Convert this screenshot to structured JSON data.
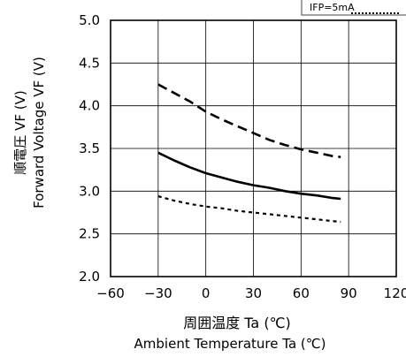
{
  "chart_data": {
    "type": "line",
    "xlabel_jp": "周囲温度 Ta (℃)",
    "xlabel_en": "Ambient Temperature Ta (℃)",
    "ylabel_jp": "順電圧 VF (V)",
    "ylabel_en": "Forward Voltage VF (V)",
    "xlim": [
      -60,
      120
    ],
    "ylim": [
      2.0,
      5.0
    ],
    "x_ticks": [
      "−60",
      "−30",
      "0",
      "30",
      "60",
      "90",
      "120"
    ],
    "x_tick_values": [
      -60,
      -30,
      0,
      30,
      60,
      90,
      120
    ],
    "y_ticks": [
      "5.0",
      "4.5",
      "4.0",
      "3.5",
      "3.0",
      "2.5",
      "2.0"
    ],
    "y_tick_values": [
      5.0,
      4.5,
      4.0,
      3.5,
      3.0,
      2.5,
      2.0
    ],
    "grid": true,
    "legend_position": "top-right",
    "series": [
      {
        "style": "dashed",
        "x": [
          -30,
          -20,
          -10,
          0,
          10,
          20,
          30,
          40,
          50,
          60,
          70,
          80,
          85
        ],
        "y": [
          4.25,
          4.15,
          4.05,
          3.93,
          3.84,
          3.76,
          3.68,
          3.6,
          3.54,
          3.49,
          3.45,
          3.41,
          3.4
        ]
      },
      {
        "style": "solid",
        "x": [
          -30,
          -20,
          -10,
          0,
          10,
          20,
          30,
          40,
          50,
          60,
          70,
          80,
          85
        ],
        "y": [
          3.45,
          3.36,
          3.28,
          3.21,
          3.16,
          3.11,
          3.07,
          3.04,
          3.0,
          2.97,
          2.95,
          2.92,
          2.91
        ]
      },
      {
        "name": "IFP=5mA",
        "style": "dotted",
        "x": [
          -30,
          -20,
          -10,
          0,
          10,
          20,
          30,
          40,
          50,
          60,
          70,
          80,
          85
        ],
        "y": [
          2.94,
          2.89,
          2.85,
          2.82,
          2.8,
          2.77,
          2.75,
          2.73,
          2.71,
          2.69,
          2.67,
          2.65,
          2.64
        ]
      }
    ]
  },
  "legend": {
    "label": "IFP=5mA"
  }
}
